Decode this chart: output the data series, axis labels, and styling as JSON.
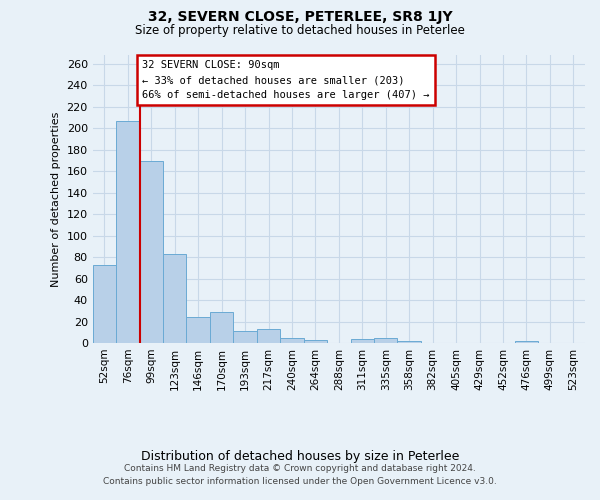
{
  "title": "32, SEVERN CLOSE, PETERLEE, SR8 1JY",
  "subtitle": "Size of property relative to detached houses in Peterlee",
  "xlabel": "Distribution of detached houses by size in Peterlee",
  "ylabel": "Number of detached properties",
  "footer_line1": "Contains HM Land Registry data © Crown copyright and database right 2024.",
  "footer_line2": "Contains public sector information licensed under the Open Government Licence v3.0.",
  "bar_labels": [
    "52sqm",
    "76sqm",
    "99sqm",
    "123sqm",
    "146sqm",
    "170sqm",
    "193sqm",
    "217sqm",
    "240sqm",
    "264sqm",
    "288sqm",
    "311sqm",
    "335sqm",
    "358sqm",
    "382sqm",
    "405sqm",
    "429sqm",
    "452sqm",
    "476sqm",
    "499sqm",
    "523sqm"
  ],
  "bar_values": [
    73,
    207,
    169,
    83,
    24,
    29,
    11,
    13,
    5,
    3,
    0,
    4,
    5,
    2,
    0,
    0,
    0,
    0,
    2,
    0,
    0
  ],
  "bar_color": "#b8d0e8",
  "bar_edge_color": "#6aaad4",
  "grid_color": "#c8d8e8",
  "background_color": "#e8f1f8",
  "property_line_x": 1.5,
  "annotation_text": "32 SEVERN CLOSE: 90sqm\n← 33% of detached houses are smaller (203)\n66% of semi-detached houses are larger (407) →",
  "annotation_box_facecolor": "#ffffff",
  "annotation_border_color": "#cc0000",
  "vline_color": "#cc0000",
  "ylim": [
    0,
    268
  ],
  "yticks": [
    0,
    20,
    40,
    60,
    80,
    100,
    120,
    140,
    160,
    180,
    200,
    220,
    240,
    260
  ]
}
